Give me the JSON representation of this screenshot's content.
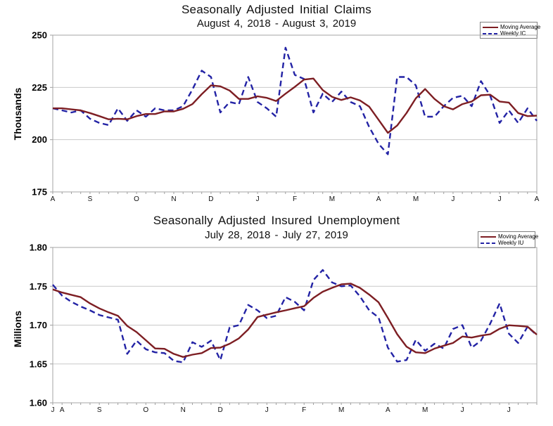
{
  "colors": {
    "moving_average": "#7d1e23",
    "weekly": "#2323a5",
    "gridline": "#c9c9c9",
    "plot_border": "#a6a6a6",
    "tick": "#9f9f9f",
    "text": "#000000",
    "legend_border": "#808080"
  },
  "chart_data": [
    {
      "type": "line",
      "title": "Seasonally Adjusted Initial Claims",
      "subtitle": "August 4, 2018 - August 3, 2019",
      "ylabel": "Thousands",
      "legend": {
        "moving_average": "Moving Average",
        "weekly": "Weekly IC"
      },
      "legend_position": "top-right",
      "grid": "horizontal",
      "ylim": [
        175,
        250
      ],
      "y_ticks": [
        "250",
        "225",
        "200",
        "175"
      ],
      "y_tick_values": [
        250,
        225,
        200,
        175
      ],
      "x_tick_labels": [
        "A",
        "S",
        "O",
        "N",
        "D",
        "J",
        "F",
        "M",
        "A",
        "M",
        "J",
        "J",
        "A"
      ],
      "x_tick_weeks": [
        0,
        4,
        9,
        13,
        17,
        22,
        26,
        30,
        35,
        39,
        43,
        48,
        52
      ],
      "x_weeks": 53,
      "series": [
        {
          "name": "Moving Average",
          "style": "solid",
          "values": [
            215,
            215,
            214.5,
            214,
            212.75,
            211.25,
            209.75,
            210,
            209.75,
            211.25,
            212.25,
            212.25,
            213.5,
            213.5,
            214.75,
            217,
            221.75,
            226,
            225.5,
            223.5,
            219.5,
            219.5,
            220.75,
            220,
            218.5,
            222,
            225.25,
            228.75,
            229.25,
            223.75,
            220.5,
            219,
            220.25,
            218.75,
            215.75,
            209.5,
            203.25,
            206.75,
            212.75,
            219.75,
            224.25,
            219.5,
            216,
            214.5,
            217,
            218.25,
            221.25,
            221.5,
            218.25,
            217.75,
            212.75,
            211.25,
            211.5
          ]
        },
        {
          "name": "Weekly IC",
          "style": "dashed",
          "values": [
            215,
            214,
            213,
            214,
            210,
            208,
            207,
            215,
            209,
            214,
            211,
            215,
            214,
            214,
            216,
            224,
            233,
            230,
            213,
            218,
            217,
            230,
            218,
            215,
            211,
            244,
            231,
            229,
            213,
            222,
            218,
            223,
            218,
            216,
            206,
            198,
            193,
            230,
            230,
            226,
            211,
            211,
            216,
            220,
            221,
            216,
            228,
            221,
            208,
            214,
            208,
            215,
            209
          ]
        }
      ]
    },
    {
      "type": "line",
      "title": "Seasonally Adjusted Insured Unemployment",
      "subtitle": "July 28, 2018 - July 27, 2019",
      "ylabel": "Millions",
      "legend": {
        "moving_average": "Moving Average",
        "weekly": "Weekly IU"
      },
      "legend_position": "top-right",
      "grid": "horizontal",
      "ylim": [
        1.6,
        1.8
      ],
      "y_ticks": [
        "1.80",
        "1.75",
        "1.70",
        "1.65",
        "1.60"
      ],
      "y_tick_values": [
        1.8,
        1.75,
        1.7,
        1.65,
        1.6
      ],
      "x_tick_labels": [
        "J",
        "A",
        "S",
        "O",
        "N",
        "D",
        "J",
        "F",
        "M",
        "A",
        "M",
        "J",
        "J"
      ],
      "x_tick_weeks": [
        0,
        1,
        5,
        10,
        14,
        18,
        23,
        27,
        31,
        36,
        40,
        44,
        49
      ],
      "x_weeks": 53,
      "series": [
        {
          "name": "Moving Average",
          "style": "solid",
          "values": [
            1.746,
            1.742,
            1.739,
            1.736,
            1.728,
            1.7215,
            1.7165,
            1.712,
            1.699,
            1.691,
            1.6805,
            1.67,
            1.6695,
            1.663,
            1.659,
            1.662,
            1.664,
            1.6705,
            1.671,
            1.676,
            1.683,
            1.6945,
            1.7105,
            1.7135,
            1.7165,
            1.719,
            1.7218,
            1.7243,
            1.735,
            1.743,
            1.748,
            1.7525,
            1.7535,
            1.748,
            1.7393,
            1.7293,
            1.7093,
            1.6883,
            1.6723,
            1.665,
            1.664,
            1.6698,
            1.6735,
            1.677,
            1.6853,
            1.684,
            1.6865,
            1.6883,
            1.6953,
            1.6998,
            1.699,
            1.698,
            1.6878
          ]
        },
        {
          "name": "Weekly IU",
          "style": "dashed",
          "values": [
            1.752,
            1.738,
            1.73,
            1.724,
            1.719,
            1.713,
            1.71,
            1.707,
            1.663,
            1.68,
            1.669,
            1.665,
            1.664,
            1.654,
            1.652,
            1.678,
            1.672,
            1.68,
            1.655,
            1.697,
            1.7,
            1.726,
            1.719,
            1.709,
            1.712,
            1.736,
            1.73,
            1.719,
            1.758,
            1.771,
            1.755,
            1.75,
            1.751,
            1.737,
            1.719,
            1.71,
            1.671,
            1.653,
            1.655,
            1.681,
            1.667,
            1.676,
            1.67,
            1.695,
            1.7,
            1.671,
            1.68,
            1.702,
            1.728,
            1.689,
            1.677,
            1.698,
            1.687
          ]
        }
      ]
    }
  ]
}
